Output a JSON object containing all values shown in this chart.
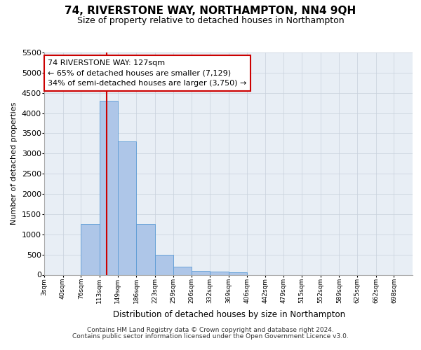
{
  "title": "74, RIVERSTONE WAY, NORTHAMPTON, NN4 9QH",
  "subtitle": "Size of property relative to detached houses in Northampton",
  "xlabel": "Distribution of detached houses by size in Northampton",
  "ylabel": "Number of detached properties",
  "footer_line1": "Contains HM Land Registry data © Crown copyright and database right 2024.",
  "footer_line2": "Contains public sector information licensed under the Open Government Licence v3.0.",
  "annotation_title": "74 RIVERSTONE WAY: 127sqm",
  "annotation_line1": "← 65% of detached houses are smaller (7,129)",
  "annotation_line2": "34% of semi-detached houses are larger (3,750) →",
  "property_size": 127,
  "bar_edges": [
    3,
    40,
    76,
    113,
    149,
    186,
    223,
    259,
    296,
    332,
    369,
    406,
    442,
    479,
    515,
    552,
    589,
    625,
    662,
    698,
    735
  ],
  "bar_heights": [
    0,
    0,
    1250,
    4300,
    3300,
    1250,
    500,
    200,
    100,
    75,
    60,
    0,
    0,
    0,
    0,
    0,
    0,
    0,
    0,
    0
  ],
  "bar_color": "#aec6e8",
  "bar_edge_color": "#5b9bd5",
  "red_line_color": "#cc0000",
  "annotation_box_color": "#cc0000",
  "grid_color": "#c8d0dc",
  "background_color": "#e8eef5",
  "ylim": [
    0,
    5500
  ],
  "yticks": [
    0,
    500,
    1000,
    1500,
    2000,
    2500,
    3000,
    3500,
    4000,
    4500,
    5000,
    5500
  ],
  "title_fontsize": 11,
  "subtitle_fontsize": 9
}
